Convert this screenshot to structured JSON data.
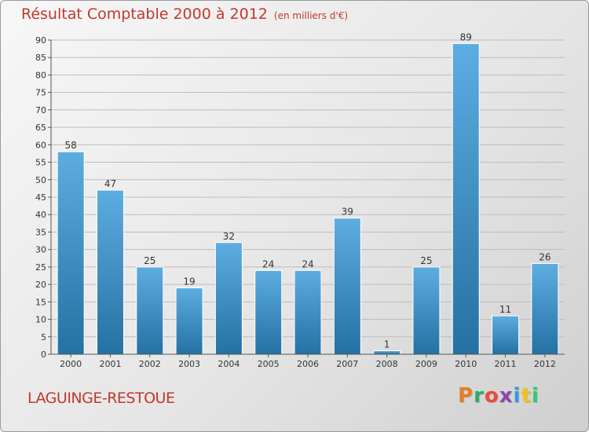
{
  "header": {
    "title": "Résultat Comptable 2000 à 2012",
    "unit": "(en milliers d'€)"
  },
  "footer": {
    "commune": "LAGUINGE-RESTOUE",
    "logo_text": "Proxiti",
    "logo_colors": [
      "#e67e22",
      "#27ae60",
      "#e74c3c",
      "#8e44ad",
      "#3498db",
      "#f1c40f",
      "#2ecc71"
    ]
  },
  "colors": {
    "title": "#c0392b",
    "bar_light": "#5dade2",
    "bar_dark": "#2471a3",
    "grid": "#bdbdbd",
    "axis_text": "#333333"
  },
  "chart_data": {
    "type": "bar",
    "title": "Résultat Comptable 2000 à 2012",
    "subtitle": "(en milliers d'€)",
    "categories": [
      "2000",
      "2001",
      "2002",
      "2003",
      "2004",
      "2005",
      "2006",
      "2007",
      "2008",
      "2009",
      "2010",
      "2011",
      "2012"
    ],
    "values": [
      58,
      47,
      25,
      19,
      32,
      24,
      24,
      39,
      1,
      25,
      89,
      11,
      26
    ],
    "ylim": [
      0,
      90
    ],
    "yticks": [
      0,
      5,
      10,
      15,
      20,
      25,
      30,
      35,
      40,
      45,
      50,
      55,
      60,
      65,
      70,
      75,
      80,
      85,
      90
    ],
    "grid": true,
    "data_labels": true
  }
}
